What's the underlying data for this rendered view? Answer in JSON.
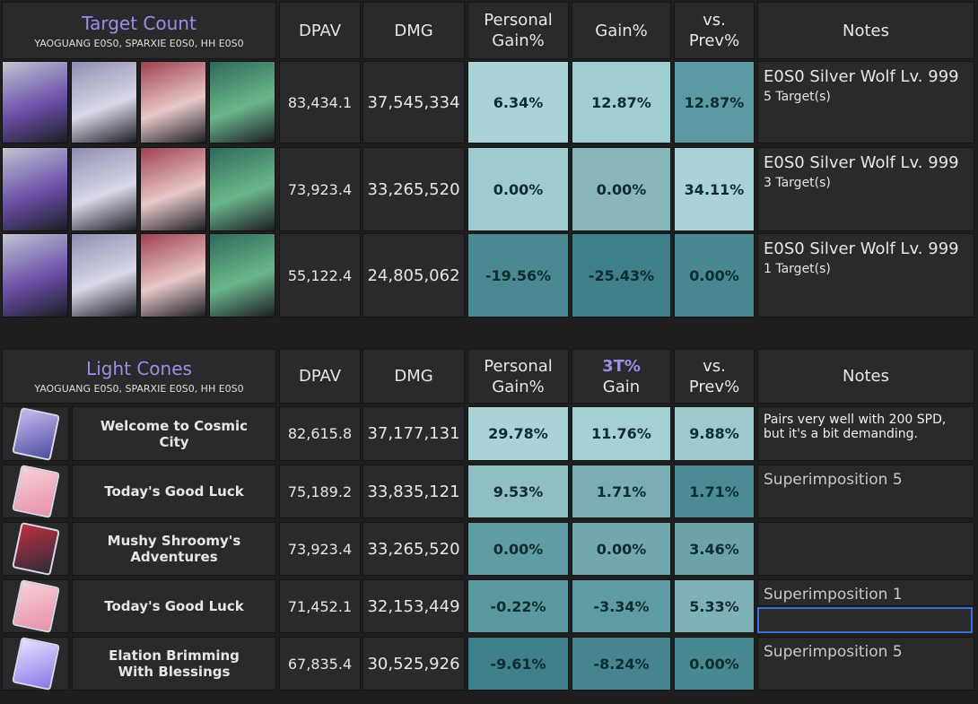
{
  "tables": [
    {
      "title": "Target Count",
      "subtitle": "YAOGUANG E0S0, SPARXIE E0S0, HH E0S0",
      "headers": {
        "dpav": "DPAV",
        "dmg": "DMG",
        "personal_gain": "Personal Gain%",
        "gain": "Gain%",
        "vs_prev": "vs. Prev%",
        "notes": "Notes"
      },
      "rows": [
        {
          "dpav": "83,434.1",
          "dmg": "37,545,334",
          "personal_gain": "6.34%",
          "gain": "12.87%",
          "vs_prev": "12.87%",
          "note_title": "E0S0 Silver Wolf Lv. 999",
          "note_detail": "5 Target(s)"
        },
        {
          "dpav": "73,923.4",
          "dmg": "33,265,520",
          "personal_gain": "0.00%",
          "gain": "0.00%",
          "vs_prev": "34.11%",
          "note_title": "E0S0 Silver Wolf Lv. 999",
          "note_detail": "3 Target(s)"
        },
        {
          "dpav": "55,122.4",
          "dmg": "24,805,062",
          "personal_gain": "-19.56%",
          "gain": "-25.43%",
          "vs_prev": "0.00%",
          "note_title": "E0S0 Silver Wolf Lv. 999",
          "note_detail": "1 Target(s)"
        }
      ]
    },
    {
      "title": "Light Cones",
      "subtitle": "YAOGUANG E0S0, SPARXIE E0S0, HH E0S0",
      "headers": {
        "dpav": "DPAV",
        "dmg": "DMG",
        "personal_gain": "Personal Gain%",
        "gain_highlight": "3T%",
        "gain": "Gain",
        "vs_prev": "vs. Prev%",
        "notes": "Notes"
      },
      "rows": [
        {
          "name": "Welcome to Cosmic City",
          "dpav": "82,615.8",
          "dmg": "37,177,131",
          "personal_gain": "29.78%",
          "gain": "11.76%",
          "vs_prev": "9.88%",
          "note": "Pairs very well with 200 SPD, but it's a bit demanding."
        },
        {
          "name": "Today's Good Luck",
          "dpav": "75,189.2",
          "dmg": "33,835,121",
          "personal_gain": "9.53%",
          "gain": "1.71%",
          "vs_prev": "1.71%",
          "note": "Superimposition 5"
        },
        {
          "name": "Mushy Shroomy's Adventures",
          "dpav": "73,923.4",
          "dmg": "33,265,520",
          "personal_gain": "0.00%",
          "gain": "0.00%",
          "vs_prev": "3.46%"
        },
        {
          "name": "Today's Good Luck",
          "dpav": "71,452.1",
          "dmg": "32,153,449",
          "personal_gain": "-0.22%",
          "gain": "-3.34%",
          "vs_prev": "5.33%",
          "note": "Superimposition 1"
        },
        {
          "name": "Elation Brimming With Blessings",
          "dpav": "67,835.4",
          "dmg": "30,525,926",
          "personal_gain": "-9.61%",
          "gain": "-8.24%",
          "vs_prev": "0.00%",
          "note": "Superimposition 5"
        }
      ]
    }
  ]
}
